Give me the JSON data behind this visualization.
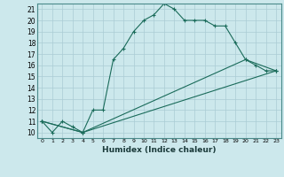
{
  "xlabel": "Humidex (Indice chaleur)",
  "background_color": "#cce8ec",
  "grid_color": "#aaccd4",
  "line_color": "#1a6b5a",
  "xlim": [
    -0.5,
    23.5
  ],
  "ylim": [
    9.5,
    21.5
  ],
  "xticks": [
    0,
    1,
    2,
    3,
    4,
    5,
    6,
    7,
    8,
    9,
    10,
    11,
    12,
    13,
    14,
    15,
    16,
    17,
    18,
    19,
    20,
    21,
    22,
    23
  ],
  "yticks": [
    10,
    11,
    12,
    13,
    14,
    15,
    16,
    17,
    18,
    19,
    20,
    21
  ],
  "series": [
    {
      "x": [
        0,
        1,
        2,
        3,
        4,
        5,
        6,
        7,
        8,
        9,
        10,
        11,
        12,
        13,
        14,
        15,
        16,
        17,
        18,
        19,
        20,
        21,
        22,
        23
      ],
      "y": [
        11,
        10,
        11,
        10.5,
        10,
        12,
        12,
        16.5,
        17.5,
        19,
        20,
        20.5,
        21.5,
        21,
        20,
        20,
        20,
        19.5,
        19.5,
        18,
        16.5,
        16,
        15.5,
        15.5
      ]
    },
    {
      "x": [
        0,
        4,
        23
      ],
      "y": [
        11,
        10,
        15.5
      ]
    },
    {
      "x": [
        0,
        4,
        20,
        23
      ],
      "y": [
        11,
        10,
        16.5,
        15.5
      ]
    }
  ]
}
